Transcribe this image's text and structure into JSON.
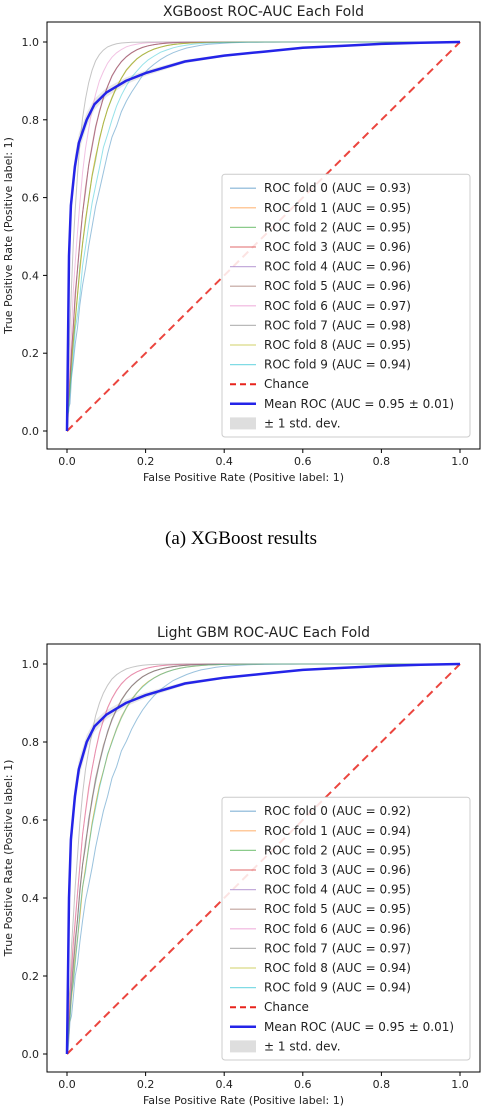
{
  "caption": "(a) XGBoost results",
  "chart_data": [
    {
      "type": "line",
      "title": "XGBoost ROC-AUC Each Fold",
      "xlabel": "False Positive Rate (Positive label: 1)",
      "ylabel": "True Positive Rate (Positive label: 1)",
      "xlim": [
        0,
        1
      ],
      "ylim": [
        0,
        1
      ],
      "xticks": [
        "0.0",
        "0.2",
        "0.4",
        "0.6",
        "0.8",
        "1.0"
      ],
      "yticks": [
        "0.0",
        "0.2",
        "0.4",
        "0.6",
        "0.8",
        "1.0"
      ],
      "legend_position": "lower-right",
      "folds": [
        {
          "name": "ROC fold 0 (AUC = 0.93)",
          "auc": 0.93,
          "color": "#1f77b4"
        },
        {
          "name": "ROC fold 1 (AUC = 0.95)",
          "auc": 0.95,
          "color": "#ff7f0e"
        },
        {
          "name": "ROC fold 2 (AUC = 0.95)",
          "auc": 0.95,
          "color": "#2ca02c"
        },
        {
          "name": "ROC fold 3 (AUC = 0.96)",
          "auc": 0.96,
          "color": "#d62728"
        },
        {
          "name": "ROC fold 4 (AUC = 0.96)",
          "auc": 0.96,
          "color": "#9467bd"
        },
        {
          "name": "ROC fold 5 (AUC = 0.96)",
          "auc": 0.96,
          "color": "#8c564b"
        },
        {
          "name": "ROC fold 6 (AUC = 0.97)",
          "auc": 0.97,
          "color": "#e377c2"
        },
        {
          "name": "ROC fold 7 (AUC = 0.98)",
          "auc": 0.98,
          "color": "#7f7f7f"
        },
        {
          "name": "ROC fold 8 (AUC = 0.95)",
          "auc": 0.95,
          "color": "#bcbd22"
        },
        {
          "name": "ROC fold 9 (AUC = 0.94)",
          "auc": 0.94,
          "color": "#17becf"
        }
      ],
      "chance": {
        "name": "Chance",
        "x": [
          0,
          1
        ],
        "y": [
          0,
          1
        ],
        "color": "#e8241c"
      },
      "mean": {
        "name": "Mean ROC (AUC = 0.95 ± 0.01)",
        "color": "#2424e8",
        "x": [
          0,
          0.005,
          0.01,
          0.02,
          0.03,
          0.05,
          0.07,
          0.1,
          0.15,
          0.2,
          0.3,
          0.4,
          0.5,
          0.6,
          0.7,
          0.8,
          0.9,
          1.0
        ],
        "y": [
          0,
          0.45,
          0.58,
          0.68,
          0.74,
          0.8,
          0.84,
          0.87,
          0.9,
          0.92,
          0.95,
          0.965,
          0.975,
          0.985,
          0.99,
          0.995,
          0.998,
          1.0
        ]
      },
      "std_band": {
        "name": "± 1 std. dev.",
        "width": 0.03
      }
    },
    {
      "type": "line",
      "title": "Light GBM ROC-AUC Each Fold",
      "xlabel": "False Positive Rate (Positive label: 1)",
      "ylabel": "True Positive Rate (Positive label: 1)",
      "xlim": [
        0,
        1
      ],
      "ylim": [
        0,
        1
      ],
      "xticks": [
        "0.0",
        "0.2",
        "0.4",
        "0.6",
        "0.8",
        "1.0"
      ],
      "yticks": [
        "0.0",
        "0.2",
        "0.4",
        "0.6",
        "0.8",
        "1.0"
      ],
      "legend_position": "lower-right",
      "folds": [
        {
          "name": "ROC fold 0 (AUC = 0.92)",
          "auc": 0.92,
          "color": "#1f77b4"
        },
        {
          "name": "ROC fold 1 (AUC = 0.94)",
          "auc": 0.94,
          "color": "#ff7f0e"
        },
        {
          "name": "ROC fold 2 (AUC = 0.95)",
          "auc": 0.95,
          "color": "#2ca02c"
        },
        {
          "name": "ROC fold 3 (AUC = 0.96)",
          "auc": 0.96,
          "color": "#d62728"
        },
        {
          "name": "ROC fold 4 (AUC = 0.95)",
          "auc": 0.95,
          "color": "#9467bd"
        },
        {
          "name": "ROC fold 5 (AUC = 0.95)",
          "auc": 0.95,
          "color": "#8c564b"
        },
        {
          "name": "ROC fold 6 (AUC = 0.96)",
          "auc": 0.96,
          "color": "#e377c2"
        },
        {
          "name": "ROC fold 7 (AUC = 0.97)",
          "auc": 0.97,
          "color": "#7f7f7f"
        },
        {
          "name": "ROC fold 8 (AUC = 0.94)",
          "auc": 0.94,
          "color": "#bcbd22"
        },
        {
          "name": "ROC fold 9 (AUC = 0.94)",
          "auc": 0.94,
          "color": "#17becf"
        }
      ],
      "chance": {
        "name": "Chance",
        "x": [
          0,
          1
        ],
        "y": [
          0,
          1
        ],
        "color": "#e8241c"
      },
      "mean": {
        "name": "Mean ROC (AUC = 0.95 ± 0.01)",
        "color": "#2424e8",
        "x": [
          0,
          0.005,
          0.01,
          0.02,
          0.03,
          0.05,
          0.07,
          0.1,
          0.15,
          0.2,
          0.3,
          0.4,
          0.5,
          0.6,
          0.7,
          0.8,
          0.9,
          1.0
        ],
        "y": [
          0,
          0.4,
          0.55,
          0.66,
          0.73,
          0.8,
          0.84,
          0.87,
          0.9,
          0.92,
          0.95,
          0.965,
          0.975,
          0.985,
          0.99,
          0.995,
          0.998,
          1.0
        ]
      },
      "std_band": {
        "name": "± 1 std. dev.",
        "width": 0.03
      }
    }
  ]
}
